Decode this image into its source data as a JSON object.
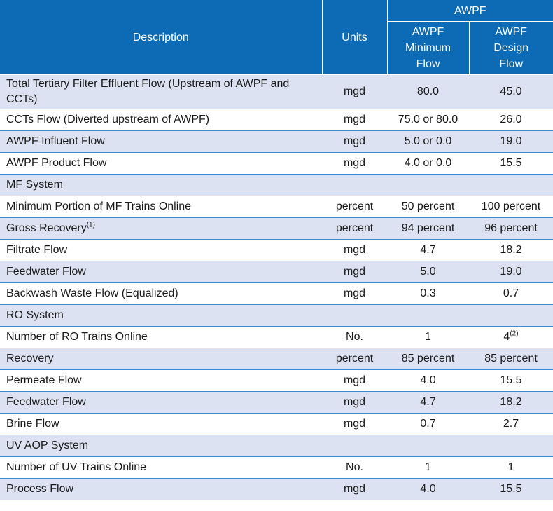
{
  "header": {
    "description": "Description",
    "units": "Units",
    "group": "AWPF",
    "min_flow": [
      "AWPF",
      "Minimum",
      "Flow"
    ],
    "design_flow": [
      "AWPF",
      "Design",
      "Flow"
    ]
  },
  "rows": [
    {
      "description": "Total Tertiary Filter Effluent Flow (Upstream of AWPF and CCTs)",
      "units": "mgd",
      "min": "80.0",
      "design": "45.0"
    },
    {
      "description": "CCTs Flow (Diverted upstream of AWPF)",
      "units": "mgd",
      "min": "75.0 or 80.0",
      "design": "26.0"
    },
    {
      "description": "AWPF Influent Flow",
      "units": "mgd",
      "min": "5.0 or 0.0",
      "design": "19.0"
    },
    {
      "description": "AWPF Product Flow",
      "units": "mgd",
      "min": "4.0 or 0.0",
      "design": "15.5"
    },
    {
      "description": "MF System",
      "units": "",
      "min": "",
      "design": ""
    },
    {
      "description": "Minimum Portion of MF Trains Online",
      "units": "percent",
      "min": "50 percent",
      "design": "100 percent"
    },
    {
      "description": "Gross Recovery",
      "desc_sup": "(1)",
      "units": "percent",
      "min": "94 percent",
      "design": "96 percent"
    },
    {
      "description": "Filtrate Flow",
      "units": "mgd",
      "min": "4.7",
      "design": "18.2"
    },
    {
      "description": "Feedwater Flow",
      "units": "mgd",
      "min": "5.0",
      "design": "19.0"
    },
    {
      "description": "Backwash Waste Flow (Equalized)",
      "units": "mgd",
      "min": "0.3",
      "design": "0.7"
    },
    {
      "description": "RO System",
      "units": "",
      "min": "",
      "design": ""
    },
    {
      "description": "Number of RO Trains Online",
      "units": "No.",
      "min": "1",
      "design": "4",
      "design_sup": "(2)"
    },
    {
      "description": "Recovery",
      "units": "percent",
      "min": "85 percent",
      "design": "85 percent"
    },
    {
      "description": "Permeate Flow",
      "units": "mgd",
      "min": "4.0",
      "design": "15.5"
    },
    {
      "description": "Feedwater Flow",
      "units": "mgd",
      "min": "4.7",
      "design": "18.2"
    },
    {
      "description": "Brine Flow",
      "units": "mgd",
      "min": "0.7",
      "design": "2.7"
    },
    {
      "description": "UV AOP System",
      "units": "",
      "min": "",
      "design": ""
    },
    {
      "description": "Number of UV Trains Online",
      "units": "No.",
      "min": "1",
      "design": "1"
    },
    {
      "description": "Process Flow",
      "units": "mgd",
      "min": "4.0",
      "design": "15.5"
    }
  ]
}
